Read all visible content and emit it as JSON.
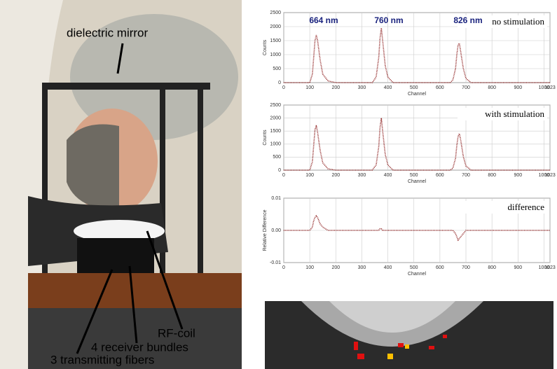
{
  "photo": {
    "labels": [
      "dielectric mirror",
      "RF-coil",
      "4 receiver bundles",
      "3 transmitting fibers"
    ]
  },
  "chart_data": [
    {
      "type": "line",
      "label": "no stimulation",
      "annotations": [
        "664 nm",
        "760 nm",
        "826 nm"
      ],
      "xlabel": "Channel",
      "ylabel": "Counts",
      "color": "#8b1a1a",
      "grid": true,
      "x": [
        0,
        100,
        110,
        115,
        120,
        125,
        130,
        140,
        150,
        170,
        200,
        340,
        355,
        365,
        370,
        375,
        380,
        390,
        400,
        420,
        640,
        650,
        660,
        665,
        670,
        675,
        680,
        690,
        700,
        720,
        1023
      ],
      "values": [
        0,
        0,
        300,
        900,
        1500,
        1700,
        1500,
        800,
        300,
        60,
        0,
        0,
        200,
        900,
        1600,
        1950,
        1500,
        600,
        200,
        0,
        0,
        100,
        500,
        1000,
        1350,
        1400,
        1100,
        500,
        150,
        0,
        0
      ],
      "xlim": [
        0,
        1023
      ],
      "ylim": [
        0,
        2500
      ],
      "xticks": [
        0,
        100,
        200,
        300,
        400,
        500,
        600,
        700,
        800,
        900,
        1000,
        1023
      ],
      "yticks": [
        0,
        500,
        1000,
        1500,
        2000,
        2500
      ]
    },
    {
      "type": "line",
      "label": "with stimulation",
      "xlabel": "Channel",
      "ylabel": "Counts",
      "color": "#8b1a1a",
      "grid": true,
      "x": [
        0,
        100,
        110,
        115,
        120,
        125,
        130,
        140,
        150,
        170,
        200,
        340,
        355,
        365,
        370,
        375,
        380,
        390,
        400,
        420,
        640,
        650,
        660,
        665,
        670,
        675,
        680,
        690,
        700,
        720,
        1023
      ],
      "values": [
        0,
        0,
        320,
        950,
        1550,
        1720,
        1450,
        750,
        280,
        50,
        0,
        0,
        200,
        900,
        1650,
        2000,
        1500,
        600,
        200,
        0,
        0,
        80,
        450,
        950,
        1300,
        1400,
        1150,
        520,
        160,
        0,
        0
      ],
      "xlim": [
        0,
        1023
      ],
      "ylim": [
        0,
        2500
      ],
      "xticks": [
        0,
        100,
        200,
        300,
        400,
        500,
        600,
        700,
        800,
        900,
        1000,
        1023
      ],
      "yticks": [
        0,
        500,
        1000,
        1500,
        2000,
        2500
      ]
    },
    {
      "type": "line",
      "label": "difference",
      "xlabel": "Channel",
      "ylabel": "Relative Difference",
      "color": "#8b1a1a",
      "grid": true,
      "x": [
        0,
        100,
        110,
        115,
        120,
        125,
        130,
        140,
        150,
        170,
        200,
        340,
        355,
        365,
        370,
        375,
        380,
        390,
        400,
        420,
        640,
        650,
        660,
        665,
        670,
        675,
        680,
        690,
        700,
        720,
        1023
      ],
      "values": [
        0,
        0,
        0.001,
        0.003,
        0.004,
        0.0045,
        0.004,
        0.002,
        0.001,
        0,
        0,
        0,
        0,
        0,
        0.0005,
        0.0005,
        0,
        0,
        0,
        0,
        0,
        0,
        -0.001,
        -0.002,
        -0.003,
        -0.0025,
        -0.002,
        -0.001,
        0,
        0,
        0
      ],
      "xlim": [
        0,
        1023
      ],
      "ylim": [
        -0.01,
        0.01
      ],
      "xticks": [
        0,
        100,
        200,
        300,
        400,
        500,
        600,
        700,
        800,
        900,
        1000,
        1023
      ],
      "yticks": [
        -0.01,
        {
          "value": 0,
          "label": "0.00"
        },
        0.01
      ]
    }
  ]
}
